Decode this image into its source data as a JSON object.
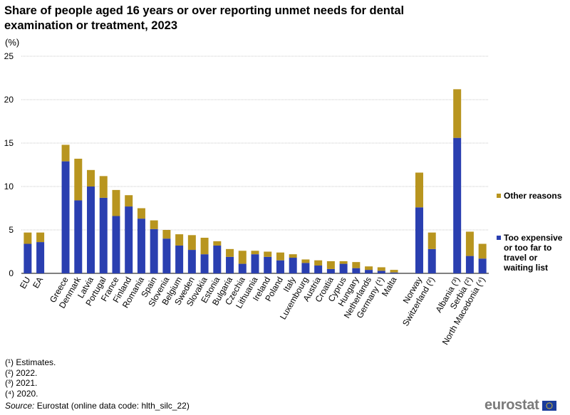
{
  "title": "Share of people aged 16 years or over reporting unmet needs for dental examination or treatment, 2023",
  "unit": "(%)",
  "colors": {
    "expensive": "#2a3fb0",
    "other": "#b8951f",
    "grid": "#c8c8c8",
    "axis": "#000000"
  },
  "legend": {
    "other": "Other reasons",
    "expensive": "Too expensive or too far to travel or waiting list"
  },
  "footnotes": [
    "(¹) Estimates.",
    "(²) 2022.",
    "(³) 2021.",
    "(⁴) 2020."
  ],
  "source": {
    "label": "Source:",
    "text": " Eurostat (online data code: hlth_silc_22)"
  },
  "logo": {
    "text": "eurostat"
  },
  "chart_data": {
    "type": "bar",
    "stacked": true,
    "title": "Share of people aged 16 years or over reporting unmet needs for dental examination or treatment, 2023",
    "ylabel": "(%)",
    "ylim": [
      0,
      25
    ],
    "yticks": [
      0,
      5,
      10,
      15,
      20,
      25
    ],
    "categories": [
      "EU",
      "EA",
      "",
      "Greece",
      "Denmark",
      "Latvia",
      "Portugal",
      "France",
      "Finland",
      "Romania",
      "Spain",
      "Slovenia",
      "Belgium",
      "Sweden",
      "Slovakia",
      "Estonia",
      "Bulgaria",
      "Czechia",
      "Lithuania",
      "Ireland",
      "Poland",
      "Italy",
      "Luxembourg",
      "Austria",
      "Croatia",
      "Cyprus",
      "Hungary",
      "Netherlands",
      "Germany (¹)",
      "Malta",
      "",
      "Norway",
      "Switzerland (²)",
      "",
      "Albania (³)",
      "Serbia (²)",
      "North Macedonia (⁴)"
    ],
    "series": [
      {
        "name": "Too expensive or too far to travel or waiting list",
        "values": [
          3.4,
          3.6,
          null,
          12.9,
          8.4,
          10.0,
          8.7,
          6.6,
          7.7,
          6.3,
          5.1,
          4.0,
          3.2,
          2.7,
          2.2,
          3.2,
          1.9,
          1.1,
          2.2,
          1.9,
          1.5,
          1.8,
          1.2,
          0.9,
          0.5,
          1.1,
          0.6,
          0.4,
          0.3,
          0.1,
          null,
          7.6,
          2.8,
          null,
          15.6,
          2.0,
          1.7
        ]
      },
      {
        "name": "Other reasons",
        "values": [
          1.3,
          1.1,
          null,
          1.9,
          4.8,
          1.9,
          2.5,
          3.0,
          1.3,
          1.2,
          1.0,
          1.0,
          1.3,
          1.7,
          1.9,
          0.5,
          0.9,
          1.5,
          0.4,
          0.6,
          0.9,
          0.4,
          0.4,
          0.6,
          0.9,
          0.3,
          0.7,
          0.4,
          0.4,
          0.3,
          null,
          4.0,
          1.9,
          null,
          5.6,
          2.8,
          1.7
        ]
      }
    ]
  }
}
